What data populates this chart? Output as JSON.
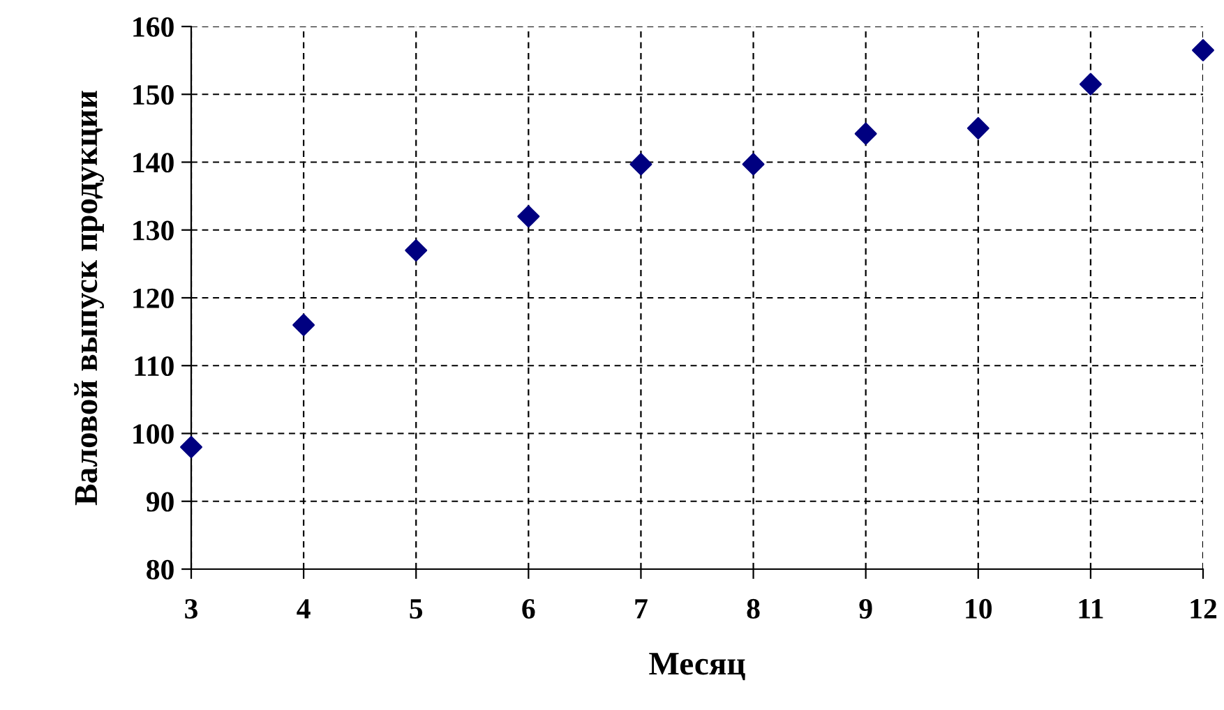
{
  "chart_data": {
    "type": "scatter",
    "xlabel": "Месяц",
    "ylabel": "Валовой выпуск продукции",
    "x": [
      3,
      4,
      5,
      6,
      7,
      8,
      9,
      10,
      11,
      12
    ],
    "series": [
      {
        "color": "#000080",
        "values": [
          98,
          116,
          127,
          132,
          139.7,
          139.7,
          144.2,
          145,
          151.5,
          156.5
        ]
      }
    ],
    "xlim": [
      3,
      12
    ],
    "xticks": [
      3,
      4,
      5,
      6,
      7,
      8,
      9,
      10,
      11,
      12
    ],
    "ylim": [
      80,
      160
    ],
    "yticks": [
      80,
      90,
      100,
      110,
      120,
      130,
      140,
      150,
      160
    ],
    "grid": true,
    "marker": "diamond"
  }
}
